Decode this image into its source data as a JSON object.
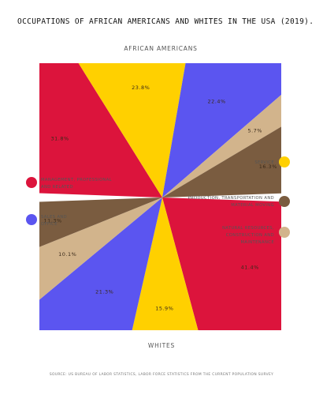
{
  "chart_data": {
    "type": "pie",
    "title": "OCCUPATIONS OF AFRICAN AMERICANS AND WHITES IN THE USA (2019).",
    "source": "SOURCE: US BUREAU OF LABOR STATISTICS, LABOR FORCE STATISTICS FROM THE CURRENT POPULATION SURVEY",
    "categories": [
      "MANAGEMENT, PROFESSIONAL AND RELATED",
      "SERVICE",
      "SALES AND OFFICE",
      "NATURAL RESOURCES, CONSTRUCTION AND MAINTENANCE",
      "PRODUCTION, TRANSPORTATION AND MATERIAL MOVING"
    ],
    "colors": [
      "#dc143c",
      "#ffd000",
      "#5b55f0",
      "#d2b48c",
      "#7a5c40"
    ],
    "series": [
      {
        "name": "AFRICAN AMERICANS",
        "values": [
          31.8,
          23.8,
          22.4,
          5.7,
          16.3
        ],
        "labels": [
          "31.8%",
          "23.8%",
          "22.4%",
          "5.7%",
          "16.3%"
        ]
      },
      {
        "name": "WHITES",
        "values": [
          41.4,
          15.9,
          21.3,
          10.1,
          11.3
        ],
        "labels": [
          "41.4%",
          "15.9%",
          "21.3%",
          "10.1%",
          "11.3%"
        ]
      }
    ],
    "legend": {
      "left": [
        {
          "category": 0,
          "lines": [
            "MANAGEMENT, PROFESSIONAL",
            "AND RELATED"
          ]
        },
        {
          "category": 2,
          "lines": [
            "SALES AND",
            "OFFICE"
          ]
        }
      ],
      "right": [
        {
          "category": 1,
          "lines": [
            "SERVICE"
          ]
        },
        {
          "category": 4,
          "lines": [
            "PRODUCTION, TRANSPORTATION AND",
            "MATERIAL MOVING"
          ]
        },
        {
          "category": 3,
          "lines": [
            "NATURAL RESOURCES,",
            "CONSTRUCTION AND",
            "MAINTENANCE"
          ]
        }
      ]
    }
  }
}
